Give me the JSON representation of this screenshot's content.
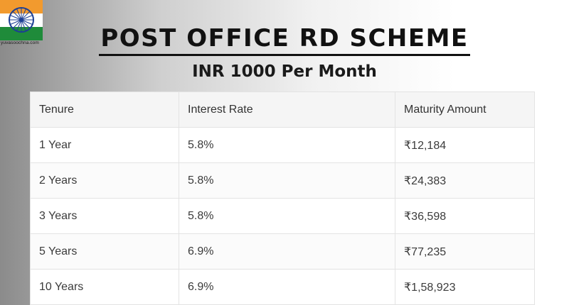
{
  "logo": {
    "site": "yuvasoochna.com"
  },
  "title": "POST OFFICE RD SCHEME",
  "subtitle": "INR 1000 Per Month",
  "table": {
    "headers": [
      "Tenure",
      "Interest Rate",
      "Maturity Amount"
    ],
    "rows": [
      [
        "1 Year",
        "5.8%",
        "₹12,184"
      ],
      [
        "2 Years",
        "5.8%",
        "₹24,383"
      ],
      [
        "3 Years",
        "5.8%",
        "₹36,598"
      ],
      [
        "5 Years",
        "6.9%",
        "₹77,235"
      ],
      [
        "10 Years",
        "6.9%",
        "₹1,58,923"
      ]
    ]
  },
  "colors": {
    "saffron": "#f29a2e",
    "green": "#1f8b3a",
    "chakra": "#1c3f94"
  }
}
